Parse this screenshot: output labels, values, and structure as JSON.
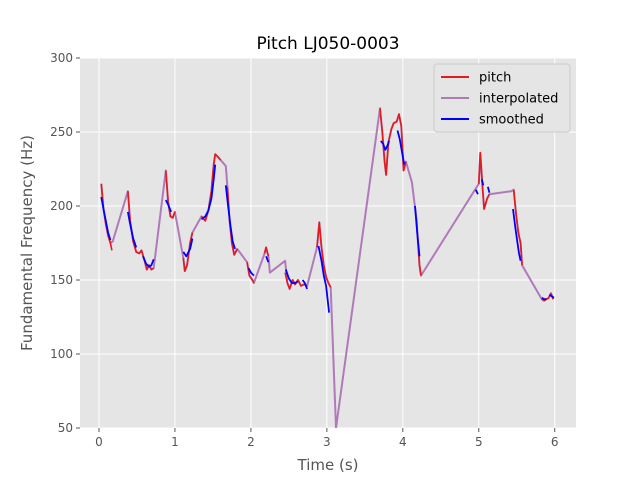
{
  "chart_data": {
    "type": "line",
    "title": "Pitch LJ050-0003",
    "xlabel": "Time (s)",
    "ylabel": "Fundamental Frequency (Hz)",
    "xlim": [
      -0.25,
      6.28
    ],
    "ylim": [
      50,
      300
    ],
    "xticks": [
      0,
      1,
      2,
      3,
      4,
      5,
      6
    ],
    "yticks": [
      50,
      100,
      150,
      200,
      250,
      300
    ],
    "grid": true,
    "legend_position": "top-right",
    "series": [
      {
        "name": "pitch",
        "color": "#e41a1c",
        "segments": [
          [
            [
              0.03,
              215
            ],
            [
              0.06,
              198
            ],
            [
              0.09,
              188
            ],
            [
              0.12,
              180
            ],
            [
              0.15,
              175
            ],
            [
              0.17,
              170
            ]
          ],
          [
            [
              0.38,
              210
            ],
            [
              0.41,
              190
            ],
            [
              0.45,
              176
            ],
            [
              0.49,
              169
            ],
            [
              0.53,
              168
            ],
            [
              0.56,
              170
            ],
            [
              0.6,
              163
            ],
            [
              0.63,
              157
            ],
            [
              0.66,
              160
            ],
            [
              0.69,
              157
            ],
            [
              0.72,
              158
            ]
          ],
          [
            [
              0.88,
              224
            ],
            [
              0.91,
              203
            ],
            [
              0.94,
              193
            ],
            [
              0.97,
              192
            ],
            [
              1.0,
              196
            ]
          ],
          [
            [
              1.11,
              165
            ],
            [
              1.13,
              156
            ],
            [
              1.16,
              160
            ],
            [
              1.2,
              175
            ],
            [
              1.23,
              182
            ]
          ],
          [
            [
              1.35,
              193
            ],
            [
              1.4,
              190
            ],
            [
              1.44,
              197
            ],
            [
              1.48,
              210
            ],
            [
              1.51,
              228
            ],
            [
              1.53,
              235
            ],
            [
              1.57,
              233
            ],
            [
              1.6,
              231
            ]
          ],
          [
            [
              1.69,
              213
            ],
            [
              1.72,
              190
            ],
            [
              1.75,
              175
            ],
            [
              1.78,
              167
            ],
            [
              1.82,
              171
            ]
          ],
          [
            [
              1.95,
              162
            ],
            [
              1.98,
              153
            ],
            [
              2.02,
              150
            ],
            [
              2.04,
              148
            ]
          ],
          [
            [
              2.18,
              168
            ],
            [
              2.2,
              172
            ],
            [
              2.23,
              166
            ]
          ],
          [
            [
              2.45,
              155
            ],
            [
              2.48,
              148
            ],
            [
              2.51,
              144
            ],
            [
              2.55,
              150
            ],
            [
              2.58,
              147
            ],
            [
              2.62,
              150
            ],
            [
              2.66,
              146
            ],
            [
              2.7,
              147
            ],
            [
              2.74,
              146
            ]
          ],
          [
            [
              2.87,
              172
            ],
            [
              2.9,
              189
            ],
            [
              2.93,
              172
            ],
            [
              2.96,
              160
            ],
            [
              2.99,
              152
            ],
            [
              3.02,
              148
            ],
            [
              3.05,
              145
            ]
          ],
          [
            [
              3.7,
              266
            ],
            [
              3.73,
              250
            ],
            [
              3.76,
              230
            ],
            [
              3.78,
              221
            ],
            [
              3.81,
              243
            ],
            [
              3.85,
              252
            ],
            [
              3.88,
              256
            ],
            [
              3.92,
              257
            ],
            [
              3.95,
              262
            ],
            [
              3.98,
              254
            ],
            [
              4.01,
              224
            ],
            [
              4.04,
              230
            ]
          ],
          [
            [
              4.18,
              191
            ],
            [
              4.2,
              175
            ],
            [
              4.22,
              160
            ],
            [
              4.24,
              153
            ]
          ],
          [
            [
              5.0,
              215
            ],
            [
              5.02,
              236
            ],
            [
              5.05,
              212
            ],
            [
              5.07,
              198
            ],
            [
              5.11,
              205
            ],
            [
              5.14,
              208
            ]
          ],
          [
            [
              5.46,
              211
            ],
            [
              5.49,
              195
            ],
            [
              5.52,
              182
            ],
            [
              5.55,
              175
            ],
            [
              5.57,
              160
            ]
          ],
          [
            [
              5.83,
              137
            ],
            [
              5.86,
              136
            ],
            [
              5.89,
              137
            ],
            [
              5.92,
              138
            ],
            [
              5.95,
              141
            ],
            [
              5.98,
              137
            ]
          ]
        ]
      },
      {
        "name": "interpolated",
        "color": "#b07aba",
        "points": [
          [
            0.03,
            215
          ],
          [
            0.06,
            198
          ],
          [
            0.09,
            188
          ],
          [
            0.12,
            180
          ],
          [
            0.15,
            175
          ],
          [
            0.18,
            176
          ],
          [
            0.38,
            210
          ],
          [
            0.41,
            190
          ],
          [
            0.45,
            176
          ],
          [
            0.49,
            169
          ],
          [
            0.53,
            168
          ],
          [
            0.56,
            170
          ],
          [
            0.6,
            163
          ],
          [
            0.63,
            157
          ],
          [
            0.66,
            160
          ],
          [
            0.69,
            157
          ],
          [
            0.72,
            158
          ],
          [
            0.88,
            224
          ],
          [
            0.91,
            203
          ],
          [
            0.94,
            193
          ],
          [
            0.97,
            192
          ],
          [
            1.0,
            196
          ],
          [
            1.11,
            165
          ],
          [
            1.13,
            156
          ],
          [
            1.16,
            160
          ],
          [
            1.2,
            175
          ],
          [
            1.23,
            182
          ],
          [
            1.35,
            193
          ],
          [
            1.4,
            190
          ],
          [
            1.44,
            197
          ],
          [
            1.48,
            210
          ],
          [
            1.51,
            228
          ],
          [
            1.53,
            235
          ],
          [
            1.57,
            233
          ],
          [
            1.67,
            227
          ],
          [
            1.69,
            213
          ],
          [
            1.72,
            190
          ],
          [
            1.75,
            175
          ],
          [
            1.78,
            167
          ],
          [
            1.82,
            171
          ],
          [
            1.95,
            162
          ],
          [
            1.98,
            153
          ],
          [
            2.02,
            150
          ],
          [
            2.04,
            148
          ],
          [
            2.18,
            168
          ],
          [
            2.2,
            172
          ],
          [
            2.23,
            166
          ],
          [
            2.25,
            155
          ],
          [
            2.45,
            163
          ],
          [
            2.48,
            148
          ],
          [
            2.51,
            144
          ],
          [
            2.55,
            150
          ],
          [
            2.58,
            147
          ],
          [
            2.62,
            150
          ],
          [
            2.66,
            146
          ],
          [
            2.7,
            147
          ],
          [
            2.74,
            146
          ],
          [
            2.87,
            172
          ],
          [
            2.9,
            189
          ],
          [
            2.93,
            172
          ],
          [
            2.96,
            160
          ],
          [
            2.99,
            152
          ],
          [
            3.02,
            148
          ],
          [
            3.05,
            145
          ],
          [
            3.12,
            50
          ],
          [
            3.7,
            266
          ],
          [
            3.73,
            250
          ],
          [
            3.76,
            230
          ],
          [
            3.78,
            221
          ],
          [
            3.81,
            243
          ],
          [
            3.85,
            252
          ],
          [
            3.88,
            256
          ],
          [
            3.92,
            257
          ],
          [
            3.95,
            262
          ],
          [
            3.98,
            254
          ],
          [
            4.01,
            224
          ],
          [
            4.04,
            230
          ],
          [
            4.12,
            216
          ],
          [
            4.18,
            191
          ],
          [
            4.2,
            175
          ],
          [
            4.22,
            160
          ],
          [
            4.24,
            153
          ],
          [
            4.95,
            211
          ],
          [
            5.0,
            215
          ],
          [
            5.02,
            236
          ],
          [
            5.05,
            212
          ],
          [
            5.07,
            198
          ],
          [
            5.11,
            205
          ],
          [
            5.14,
            208
          ],
          [
            5.43,
            210
          ],
          [
            5.46,
            211
          ],
          [
            5.49,
            195
          ],
          [
            5.52,
            182
          ],
          [
            5.55,
            175
          ],
          [
            5.57,
            160
          ],
          [
            5.83,
            137
          ],
          [
            5.86,
            136
          ],
          [
            5.89,
            137
          ],
          [
            5.92,
            138
          ],
          [
            5.95,
            141
          ],
          [
            5.98,
            137
          ]
        ]
      },
      {
        "name": "smoothed",
        "color": "#0000ff",
        "segments": [
          [
            [
              0.03,
              206
            ],
            [
              0.06,
              198
            ],
            [
              0.09,
              190
            ],
            [
              0.12,
              182
            ],
            [
              0.15,
              177
            ]
          ],
          [
            [
              0.38,
              196
            ],
            [
              0.41,
              188
            ],
            [
              0.45,
              178
            ],
            [
              0.49,
              172
            ]
          ],
          [
            [
              0.58,
              166
            ],
            [
              0.62,
              161
            ],
            [
              0.66,
              159
            ],
            [
              0.69,
              160
            ],
            [
              0.72,
              164
            ]
          ],
          [
            [
              0.88,
              204
            ],
            [
              0.91,
              201
            ],
            [
              0.95,
              196
            ]
          ],
          [
            [
              1.11,
              169
            ],
            [
              1.15,
              166
            ],
            [
              1.2,
              171
            ],
            [
              1.23,
              178
            ]
          ],
          [
            [
              1.35,
              191
            ],
            [
              1.4,
              193
            ],
            [
              1.44,
              197
            ],
            [
              1.48,
              205
            ],
            [
              1.51,
              218
            ],
            [
              1.53,
              228
            ]
          ],
          [
            [
              1.67,
              214
            ],
            [
              1.7,
              200
            ],
            [
              1.73,
              187
            ],
            [
              1.76,
              176
            ],
            [
              1.79,
              171
            ]
          ],
          [
            [
              1.97,
              158
            ],
            [
              2.0,
              155
            ],
            [
              2.04,
              153
            ]
          ],
          [
            [
              2.2,
              166
            ],
            [
              2.23,
              162
            ]
          ],
          [
            [
              2.46,
              157
            ],
            [
              2.5,
              151
            ],
            [
              2.54,
              148
            ],
            [
              2.58,
              148
            ],
            [
              2.62,
              149
            ]
          ],
          [
            [
              2.68,
              150
            ],
            [
              2.71,
              148
            ],
            [
              2.74,
              144
            ]
          ],
          [
            [
              2.89,
              173
            ],
            [
              2.93,
              163
            ],
            [
              2.96,
              153
            ],
            [
              2.99,
              146
            ],
            [
              3.03,
              128
            ]
          ],
          [
            [
              3.71,
              244
            ],
            [
              3.74,
              242
            ],
            [
              3.77,
              238
            ],
            [
              3.8,
              241
            ],
            [
              3.82,
              244
            ]
          ],
          [
            [
              3.93,
              251
            ],
            [
              3.96,
              245
            ],
            [
              3.99,
              236
            ],
            [
              4.02,
              228
            ]
          ],
          [
            [
              4.16,
              200
            ],
            [
              4.19,
              182
            ],
            [
              4.22,
              166
            ]
          ],
          [
            [
              4.96,
              211
            ],
            [
              4.99,
              208
            ]
          ],
          [
            [
              5.04,
              218
            ],
            [
              5.06,
              214
            ]
          ],
          [
            [
              5.12,
              213
            ],
            [
              5.14,
              209
            ]
          ],
          [
            [
              5.45,
              198
            ],
            [
              5.48,
              186
            ],
            [
              5.51,
              175
            ],
            [
              5.53,
              168
            ],
            [
              5.55,
              163
            ]
          ],
          [
            [
              5.83,
              138
            ],
            [
              5.86,
              137
            ],
            [
              5.89,
              137
            ]
          ],
          [
            [
              5.93,
              140
            ],
            [
              5.96,
              139
            ],
            [
              5.99,
              138
            ]
          ]
        ]
      }
    ]
  }
}
